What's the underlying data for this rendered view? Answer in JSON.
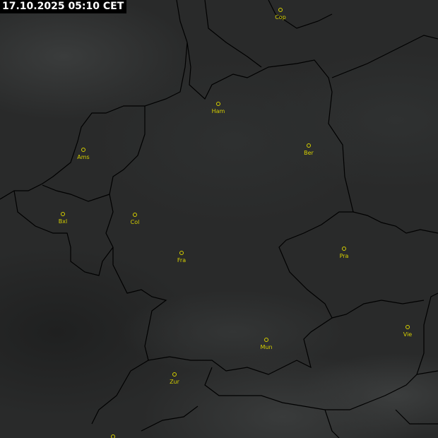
{
  "timestamp": "17.10.2025 05:10 CET",
  "marker_color": "#d6d000",
  "border_color": "#000000",
  "cities": [
    {
      "label": "Cop"
    },
    {
      "label": "Ham"
    },
    {
      "label": "Ams"
    },
    {
      "label": "Ber"
    },
    {
      "label": "Bxl"
    },
    {
      "label": "Col"
    },
    {
      "label": "Fra"
    },
    {
      "label": "Pra"
    },
    {
      "label": "Mun"
    },
    {
      "label": "Vie"
    },
    {
      "label": "Zur"
    },
    {
      "label": ""
    }
  ]
}
